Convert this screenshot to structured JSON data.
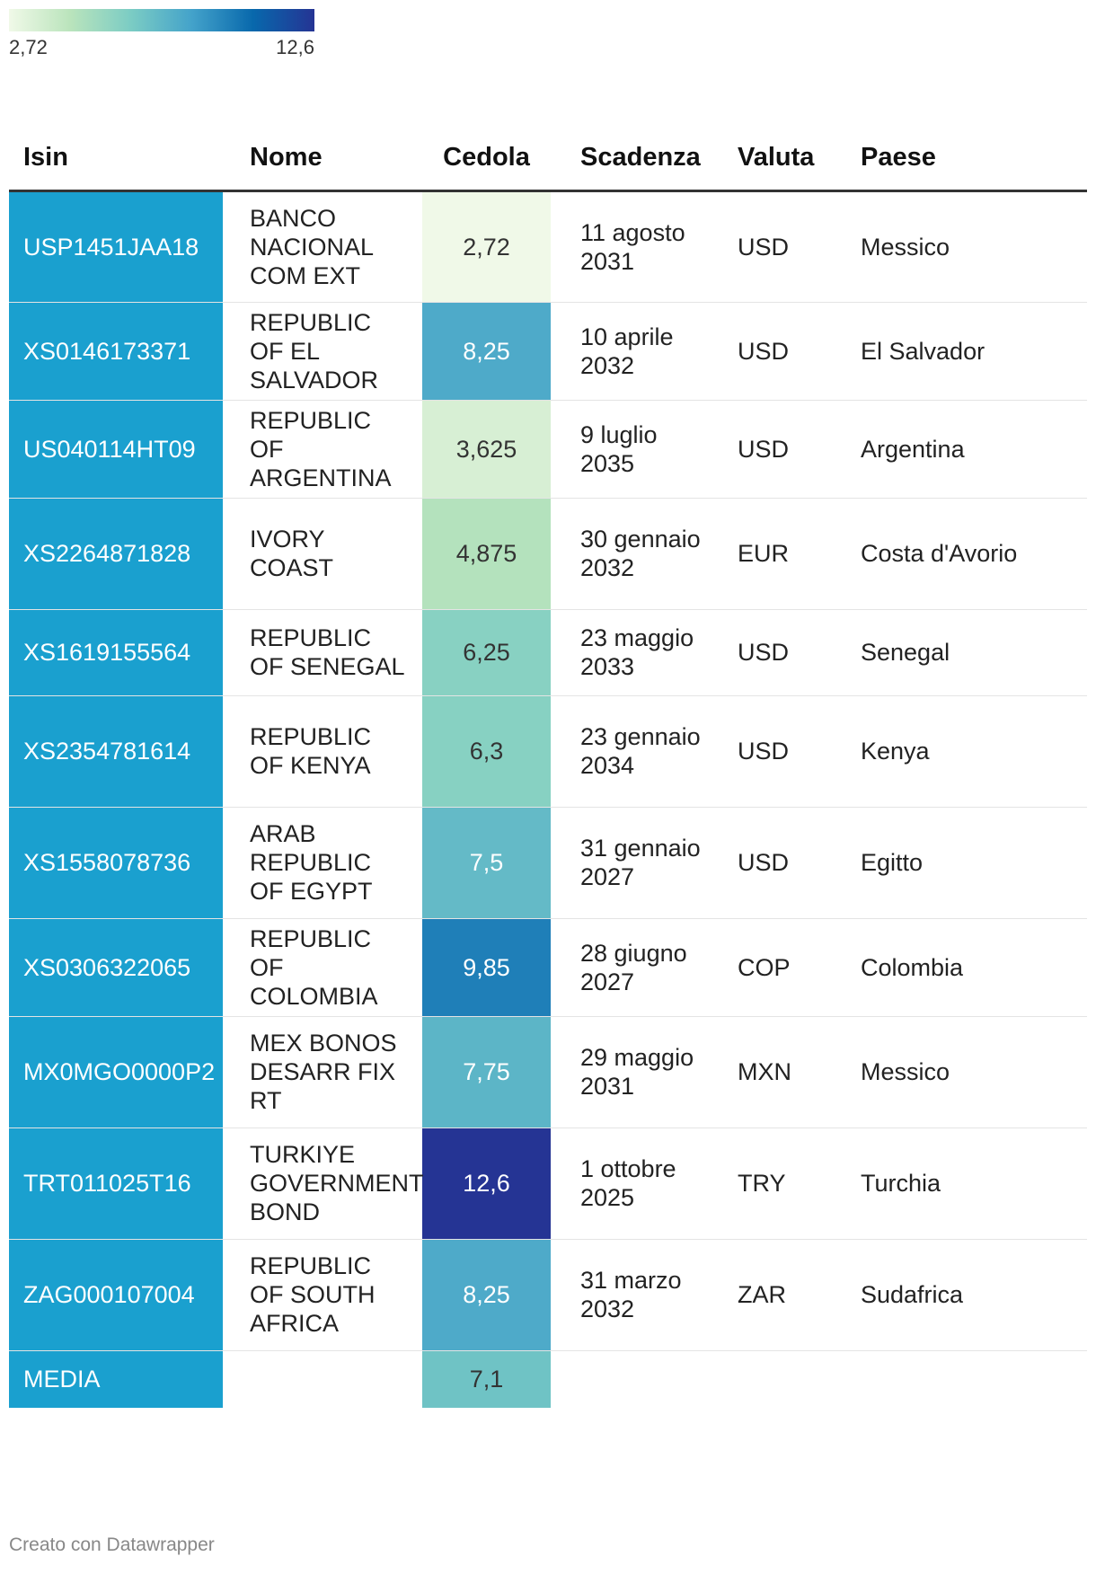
{
  "legend": {
    "min_label": "2,72",
    "max_label": "12,6",
    "min_value": 2.72,
    "max_value": 12.6,
    "gradient_colors": [
      "#f0f9e8",
      "#bae4bc",
      "#7bccc4",
      "#43a2ca",
      "#0868ac",
      "#253494"
    ]
  },
  "headers": {
    "isin": "Isin",
    "nome": "Nome",
    "cedola": "Cedola",
    "scadenza": "Scadenza",
    "valuta": "Valuta",
    "paese": "Paese"
  },
  "chart_data": {
    "type": "table",
    "columns": [
      "Isin",
      "Nome",
      "Cedola",
      "Scadenza",
      "Valuta",
      "Paese"
    ],
    "color_scale": {
      "column": "Cedola",
      "min": 2.72,
      "max": 12.6
    },
    "rows": [
      {
        "isin": "USP1451JAA18",
        "nome": "BANCO NACIONAL COM EXT",
        "cedola_label": "2,72",
        "cedola": 2.72,
        "scadenza": "11 agosto 2031",
        "valuta": "USD",
        "paese": "Messico"
      },
      {
        "isin": "XS0146173371",
        "nome": "REPUBLIC OF EL SALVADOR",
        "cedola_label": "8,25",
        "cedola": 8.25,
        "scadenza": "10 aprile 2032",
        "valuta": "USD",
        "paese": "El Salvador"
      },
      {
        "isin": "US040114HT09",
        "nome": "REPUBLIC OF ARGENTINA",
        "cedola_label": "3,625",
        "cedola": 3.625,
        "scadenza": "9 luglio 2035",
        "valuta": "USD",
        "paese": "Argentina"
      },
      {
        "isin": "XS2264871828",
        "nome": "IVORY COAST",
        "cedola_label": "4,875",
        "cedola": 4.875,
        "scadenza": "30 gennaio 2032",
        "valuta": "EUR",
        "paese": "Costa d'Avorio"
      },
      {
        "isin": "XS1619155564",
        "nome": "REPUBLIC OF SENEGAL",
        "cedola_label": "6,25",
        "cedola": 6.25,
        "scadenza": "23 maggio 2033",
        "valuta": "USD",
        "paese": "Senegal"
      },
      {
        "isin": "XS2354781614",
        "nome": "REPUBLIC OF KENYA",
        "cedola_label": "6,3",
        "cedola": 6.3,
        "scadenza": "23 gennaio 2034",
        "valuta": "USD",
        "paese": "Kenya"
      },
      {
        "isin": "XS1558078736",
        "nome": "ARAB REPUBLIC OF EGYPT",
        "cedola_label": "7,5",
        "cedola": 7.5,
        "scadenza": "31 gennaio 2027",
        "valuta": "USD",
        "paese": "Egitto"
      },
      {
        "isin": "XS0306322065",
        "nome": "REPUBLIC OF COLOMBIA",
        "cedola_label": "9,85",
        "cedola": 9.85,
        "scadenza": "28 giugno 2027",
        "valuta": "COP",
        "paese": "Colombia"
      },
      {
        "isin": "MX0MGO0000P2",
        "nome": "MEX BONOS DESARR FIX RT",
        "cedola_label": "7,75",
        "cedola": 7.75,
        "scadenza": "29 maggio 2031",
        "valuta": "MXN",
        "paese": "Messico"
      },
      {
        "isin": "TRT011025T16",
        "nome": "TURKIYE GOVERNMENT BOND",
        "cedola_label": "12,6",
        "cedola": 12.6,
        "scadenza": "1 ottobre 2025",
        "valuta": "TRY",
        "paese": "Turchia"
      },
      {
        "isin": "ZAG000107004",
        "nome": "REPUBLIC OF SOUTH AFRICA",
        "cedola_label": "8,25",
        "cedola": 8.25,
        "scadenza": "31 marzo 2032",
        "valuta": "ZAR",
        "paese": "Sudafrica"
      }
    ],
    "average": {
      "label": "MEDIA",
      "cedola_label": "7,1",
      "cedola": 7.1
    }
  },
  "footer": "Creato con Datawrapper"
}
